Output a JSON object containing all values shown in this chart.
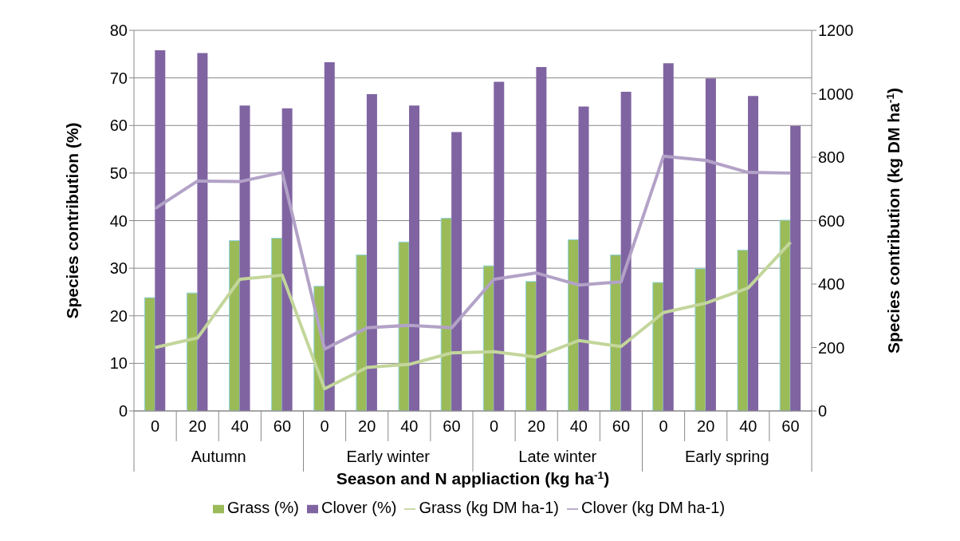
{
  "chart_data": {
    "type": "bar",
    "xlabel": "Season and N appliaction (kg ha$^{-1}$)",
    "ylabel": "Species contribution (%)",
    "y2label": "Species contribution (kg DM ha$^{-1}$)",
    "categories": [
      "0",
      "20",
      "40",
      "60",
      "0",
      "20",
      "40",
      "60",
      "0",
      "20",
      "40",
      "60",
      "0",
      "20",
      "40",
      "60"
    ],
    "annotations": [
      "Autumn",
      "Early winter",
      "Late winter",
      "Early spring"
    ],
    "series": [
      {
        "name": "Grass (%)",
        "color": "#9bbb59",
        "values": [
          23.8,
          24.8,
          35.8,
          36.3,
          26.2,
          32.8,
          35.5,
          40.5,
          30.5,
          27.2,
          36,
          32.8,
          27,
          29.9,
          33.8,
          40.1
        ]
      },
      {
        "name": "Clover (%)",
        "color": "#8064a2",
        "values": [
          75.8,
          75.2,
          64.2,
          63.6,
          73.3,
          66.6,
          64.2,
          58.6,
          69.2,
          72.3,
          64,
          67.1,
          73.1,
          69.9,
          66.2,
          59.9
        ]
      },
      {
        "name": "Grass (kg DM ha-1)",
        "type": "line",
        "axis": "y2",
        "color": "#c3d69b",
        "values": [
          200,
          230,
          415,
          428,
          70,
          137,
          147,
          183,
          187,
          170,
          222,
          203,
          310,
          340,
          388,
          532
        ]
      },
      {
        "name": "Clover (kg DM ha-1)",
        "type": "line",
        "axis": "y2",
        "color": "#b3a2c7",
        "values": [
          638,
          725,
          723,
          752,
          195,
          262,
          270,
          262,
          415,
          435,
          397,
          407,
          803,
          790,
          752,
          750
        ]
      }
    ],
    "ylim": [
      0,
      80
    ],
    "yticks": [
      0,
      10,
      20,
      30,
      40,
      50,
      60,
      70,
      80
    ],
    "y2lim": [
      0,
      1200
    ],
    "y2ticks": [
      0,
      200,
      400,
      600,
      800,
      1000,
      1200
    ],
    "grid": "y",
    "legend": "bottom",
    "marker": "none",
    "line_style": "solid"
  }
}
